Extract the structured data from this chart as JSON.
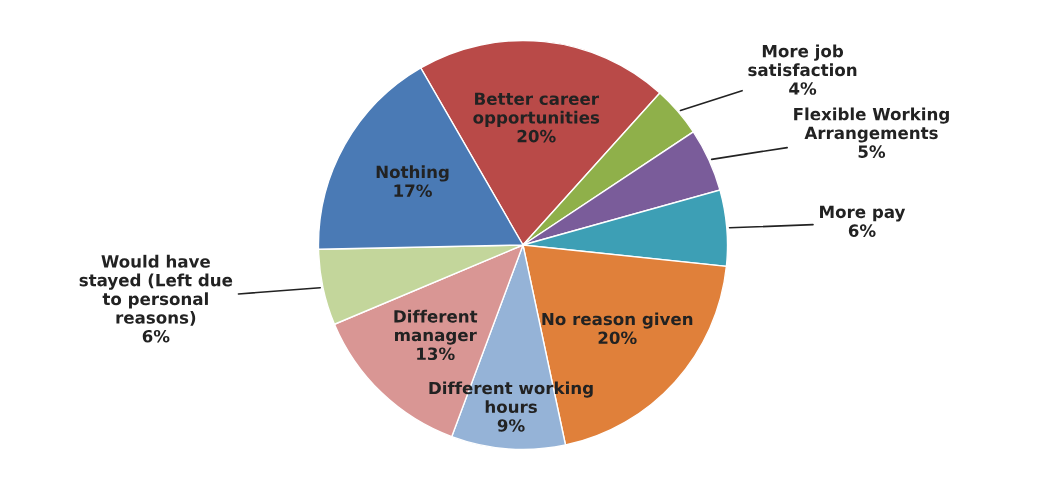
{
  "chart_data": {
    "type": "pie",
    "categories": [
      "Better career\nopportunities",
      "More job\nsatisfaction",
      "Flexible Working\nArrangements",
      "More pay",
      "No reason given",
      "Different working\nhours",
      "Different\nmanager",
      "Would have\nstayed (Left due\nto personal\nreasons)",
      "Nothing"
    ],
    "values": [
      20,
      4,
      5,
      6,
      20,
      9,
      13,
      6,
      17
    ],
    "value_labels": [
      "20%",
      "4%",
      "5%",
      "6%",
      "20%",
      "9%",
      "13%",
      "6%",
      "17%"
    ],
    "colors": [
      "#b94a48",
      "#8fb04a",
      "#7a5c9a",
      "#3d9fb5",
      "#e0803a",
      "#95b3d7",
      "#d99694",
      "#c3d69b",
      "#4a7ab5"
    ]
  }
}
